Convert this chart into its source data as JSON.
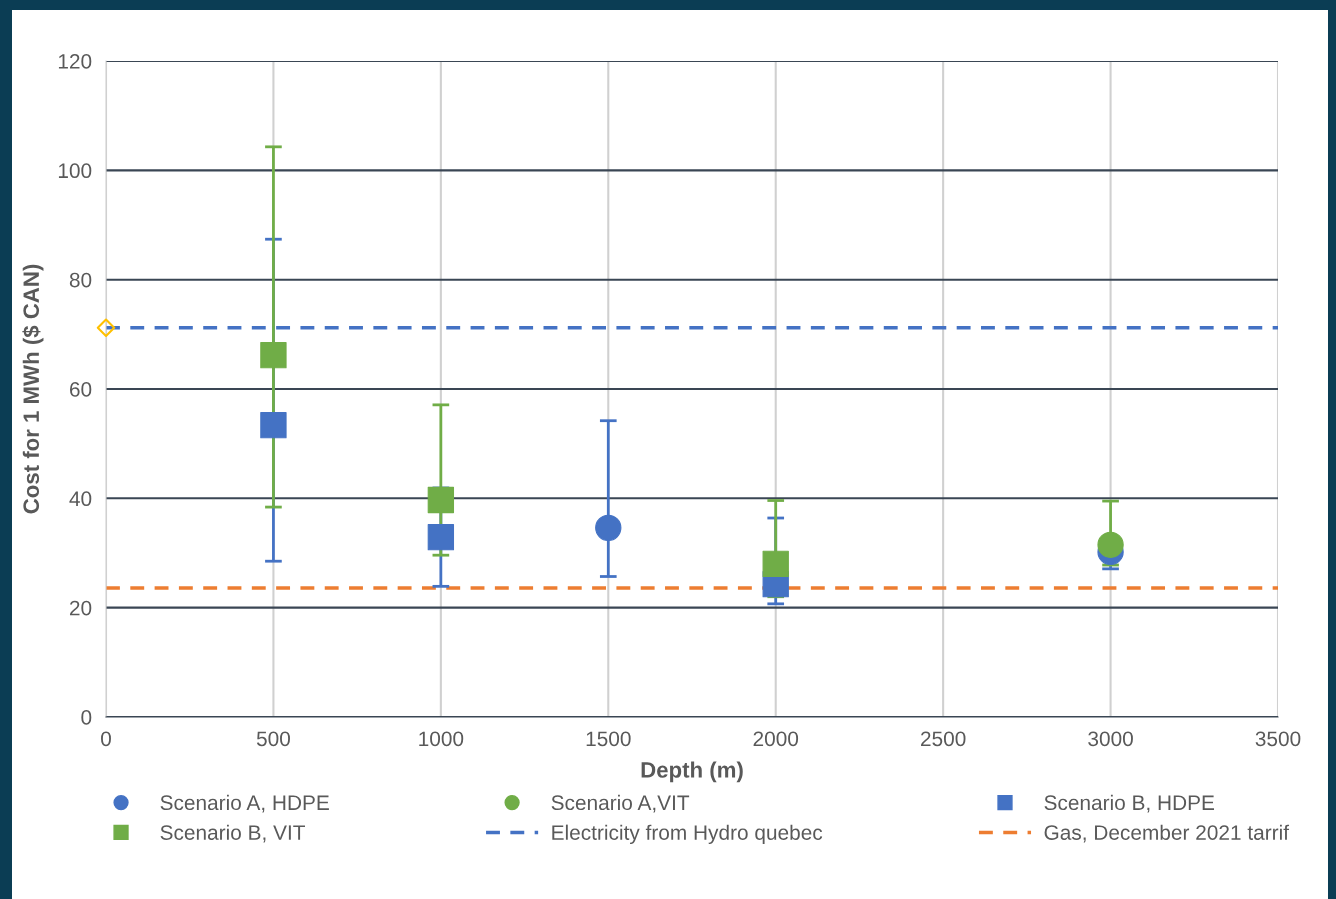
{
  "chart_data": {
    "type": "scatter",
    "xlabel": "Depth (m)",
    "ylabel": "Cost for 1 MWh ($ CAN)",
    "xlim": [
      0,
      3500
    ],
    "xticks": [
      0,
      500,
      1000,
      1500,
      2000,
      2500,
      3000,
      3500
    ],
    "ylim": [
      0,
      120
    ],
    "yticks": [
      0,
      20,
      40,
      60,
      80,
      100,
      120
    ],
    "grid": true,
    "legend": "bottom",
    "series": [
      {
        "name": "Scenario A, HDPE",
        "color": "#4472c4",
        "marker": "circle",
        "x": [
          1500,
          3000
        ],
        "values": [
          34.6,
          30.2
        ],
        "errors": [
          [
            25.7,
            54.2
          ],
          [
            27.1,
            30.2
          ]
        ]
      },
      {
        "name": "Scenario A,VIT",
        "color": "#70ad47",
        "marker": "circle",
        "x": [
          3000
        ],
        "values": [
          31.5
        ],
        "errors": [
          [
            27.8,
            39.5
          ]
        ]
      },
      {
        "name": "Scenario B, HDPE",
        "color": "#4472c4",
        "marker": "square",
        "x": [
          500,
          1000,
          2000
        ],
        "values": [
          53.4,
          32.9,
          24.3
        ],
        "errors": [
          [
            28.5,
            87.4
          ],
          [
            23.9,
            41.9
          ],
          [
            20.7,
            36.4
          ]
        ]
      },
      {
        "name": "Scenario B, VIT",
        "color": "#70ad47",
        "marker": "square",
        "x": [
          500,
          1000,
          2000
        ],
        "values": [
          66.2,
          39.7,
          28.0
        ],
        "errors": [
          [
            38.4,
            104.3
          ],
          [
            29.6,
            57.1
          ],
          [
            22.0,
            39.6
          ]
        ]
      },
      {
        "color": "#ffc000",
        "marker": "diamond",
        "x": [
          0
        ],
        "values": [
          71.2
        ]
      }
    ],
    "ref_lines": [
      {
        "axis": "y",
        "value": 71.2,
        "label": "Electricity from Hydro quebec",
        "color": "#4472c4",
        "line_style": "dashed"
      },
      {
        "axis": "y",
        "value": 23.6,
        "label": "Gas, December 2021 tarrif",
        "color": "#ed7d31",
        "line_style": "dashed"
      }
    ]
  }
}
